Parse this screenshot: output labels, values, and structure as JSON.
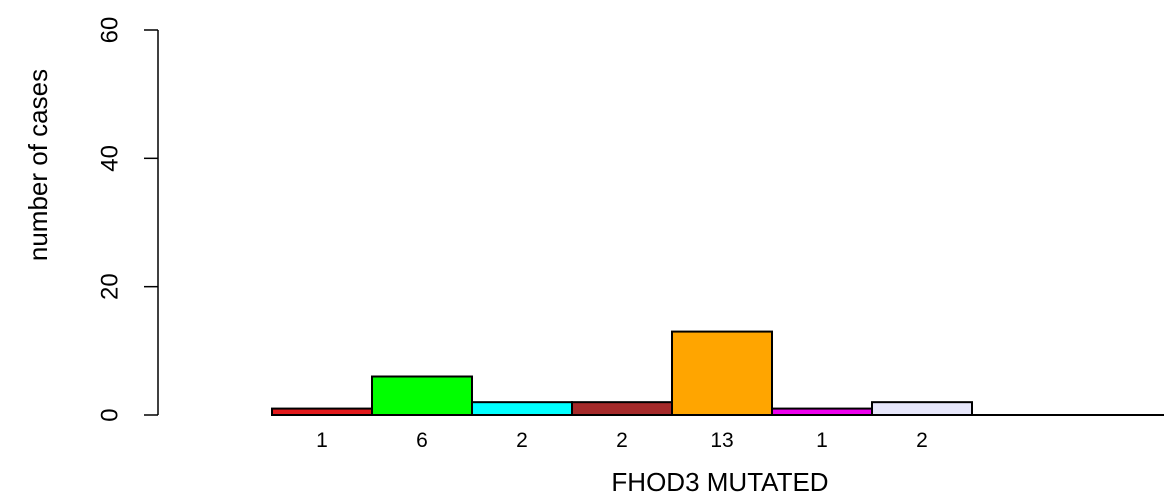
{
  "chart_data": {
    "type": "bar",
    "title": "",
    "xlabel": "FHOD3 MUTATED",
    "ylabel": "number of cases",
    "ylim": [
      0,
      60
    ],
    "yticks": [
      0,
      20,
      40,
      60
    ],
    "categories": [
      "",
      "",
      "",
      "",
      "",
      "",
      ""
    ],
    "values": [
      1,
      6,
      2,
      2,
      13,
      1,
      2
    ],
    "value_labels": [
      "1",
      "6",
      "2",
      "2",
      "13",
      "1",
      "2"
    ],
    "colors": [
      "#e31a1c",
      "#00ff00",
      "#00ffff",
      "#a52a2a",
      "#ffa500",
      "#ee00ee",
      "#e6e6fa"
    ],
    "grid": false,
    "legend": "none"
  }
}
